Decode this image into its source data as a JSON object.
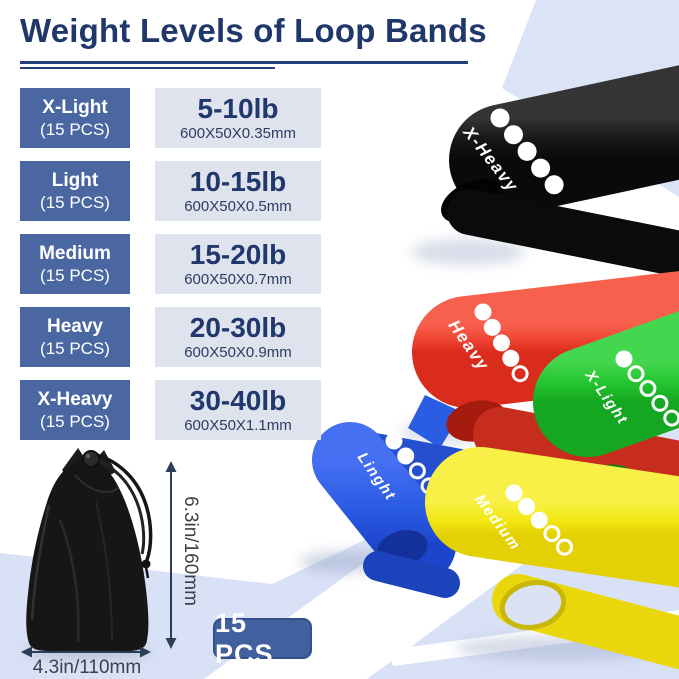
{
  "title": "Weight Levels of Loop Bands",
  "table": {
    "rows": [
      {
        "level": "X-Light",
        "qty": "(15 PCS)",
        "weight": "5-10lb",
        "dimensions": "600X50X0.35mm"
      },
      {
        "level": "Light",
        "qty": "(15 PCS)",
        "weight": "10-15lb",
        "dimensions": "600X50X0.5mm"
      },
      {
        "level": "Medium",
        "qty": "(15 PCS)",
        "weight": "15-20lb",
        "dimensions": "600X50X0.7mm"
      },
      {
        "level": "Heavy",
        "qty": "(15 PCS)",
        "weight": "20-30lb",
        "dimensions": "600X50X0.9mm"
      },
      {
        "level": "X-Heavy",
        "qty": "(15 PCS)",
        "weight": "30-40lb",
        "dimensions": "600X50X1.1mm"
      }
    ]
  },
  "bands": [
    {
      "label": "X-Heavy",
      "color": "#161616",
      "dots_filled": 5,
      "dots_total": 5
    },
    {
      "label": "Heavy",
      "color": "#ee4130",
      "dots_filled": 4,
      "dots_total": 5
    },
    {
      "label": "X-Light",
      "color": "#22c32e",
      "dots_filled": 1,
      "dots_total": 5
    },
    {
      "label": "Linght",
      "color": "#2b5ce4",
      "dots_filled": 2,
      "dots_total": 5
    },
    {
      "label": "Medium",
      "color": "#f3e712",
      "dots_filled": 3,
      "dots_total": 5
    }
  ],
  "bag": {
    "height_label": "6.3in/160mm",
    "width_label": "4.3in/110mm"
  },
  "badge": {
    "label": "15 PCS"
  },
  "colors": {
    "accent_navy": "#20376b",
    "level_box_blue": "#4a67a2",
    "value_box_bg": "#dee3ee",
    "background_periwinkle": "#d9e1f6",
    "badge_blue": "#42609d"
  }
}
